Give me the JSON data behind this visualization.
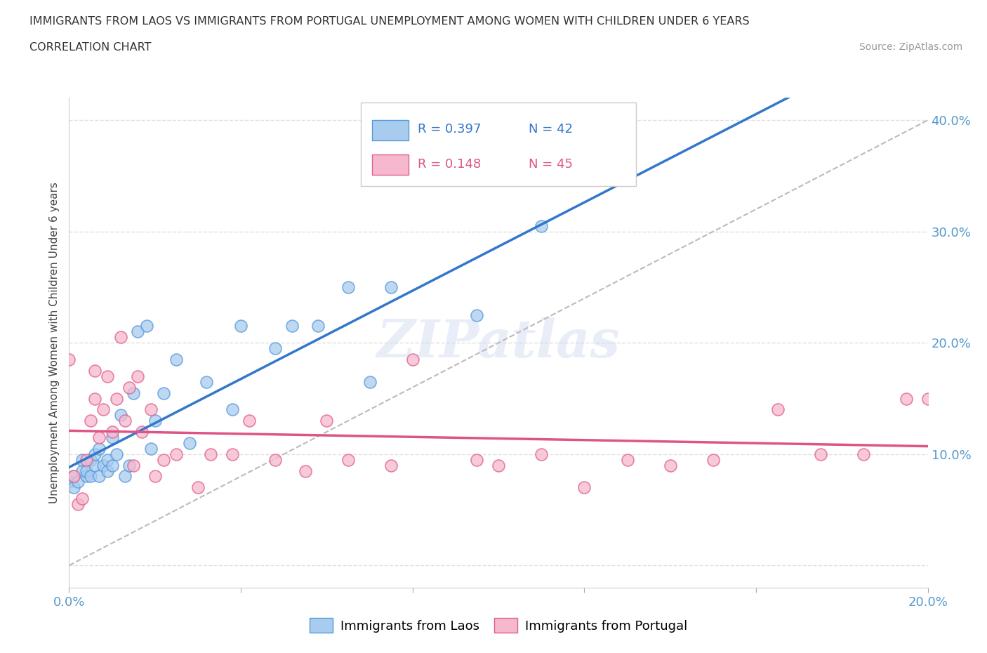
{
  "title_line1": "IMMIGRANTS FROM LAOS VS IMMIGRANTS FROM PORTUGAL UNEMPLOYMENT AMONG WOMEN WITH CHILDREN UNDER 6 YEARS",
  "title_line2": "CORRELATION CHART",
  "source": "Source: ZipAtlas.com",
  "ylabel": "Unemployment Among Women with Children Under 6 years",
  "xlim": [
    0.0,
    0.2
  ],
  "ylim": [
    -0.02,
    0.42
  ],
  "legend_r_laos": "R = 0.397",
  "legend_n_laos": "N = 42",
  "legend_r_portugal": "R = 0.148",
  "legend_n_portugal": "N = 45",
  "color_laos": "#a8ccee",
  "color_laos_edge": "#5599dd",
  "color_portugal": "#f5b8ce",
  "color_portugal_edge": "#e0608a",
  "trendline_laos_color": "#3377cc",
  "trendline_portugal_color": "#dd5588",
  "laos_x": [
    0.0,
    0.001,
    0.001,
    0.002,
    0.003,
    0.003,
    0.004,
    0.004,
    0.005,
    0.005,
    0.006,
    0.006,
    0.007,
    0.007,
    0.008,
    0.009,
    0.009,
    0.01,
    0.01,
    0.011,
    0.012,
    0.013,
    0.014,
    0.015,
    0.016,
    0.018,
    0.019,
    0.02,
    0.022,
    0.025,
    0.028,
    0.032,
    0.038,
    0.04,
    0.048,
    0.052,
    0.058,
    0.065,
    0.07,
    0.075,
    0.095,
    0.11
  ],
  "laos_y": [
    0.075,
    0.07,
    0.08,
    0.075,
    0.085,
    0.095,
    0.08,
    0.085,
    0.08,
    0.095,
    0.09,
    0.1,
    0.08,
    0.105,
    0.09,
    0.085,
    0.095,
    0.09,
    0.115,
    0.1,
    0.135,
    0.08,
    0.09,
    0.155,
    0.21,
    0.215,
    0.105,
    0.13,
    0.155,
    0.185,
    0.11,
    0.165,
    0.14,
    0.215,
    0.195,
    0.215,
    0.215,
    0.25,
    0.165,
    0.25,
    0.225,
    0.305
  ],
  "portugal_x": [
    0.0,
    0.001,
    0.002,
    0.003,
    0.004,
    0.005,
    0.006,
    0.006,
    0.007,
    0.008,
    0.009,
    0.01,
    0.011,
    0.012,
    0.013,
    0.014,
    0.015,
    0.016,
    0.017,
    0.019,
    0.02,
    0.022,
    0.025,
    0.03,
    0.033,
    0.038,
    0.042,
    0.048,
    0.055,
    0.06,
    0.065,
    0.075,
    0.08,
    0.095,
    0.1,
    0.11,
    0.12,
    0.13,
    0.14,
    0.15,
    0.165,
    0.175,
    0.185,
    0.195,
    0.2
  ],
  "portugal_y": [
    0.185,
    0.08,
    0.055,
    0.06,
    0.095,
    0.13,
    0.15,
    0.175,
    0.115,
    0.14,
    0.17,
    0.12,
    0.15,
    0.205,
    0.13,
    0.16,
    0.09,
    0.17,
    0.12,
    0.14,
    0.08,
    0.095,
    0.1,
    0.07,
    0.1,
    0.1,
    0.13,
    0.095,
    0.085,
    0.13,
    0.095,
    0.09,
    0.185,
    0.095,
    0.09,
    0.1,
    0.07,
    0.095,
    0.09,
    0.095,
    0.14,
    0.1,
    0.1,
    0.15,
    0.15
  ],
  "watermark": "ZIPatlas",
  "background_color": "#ffffff",
  "grid_color": "#e0e0e0"
}
